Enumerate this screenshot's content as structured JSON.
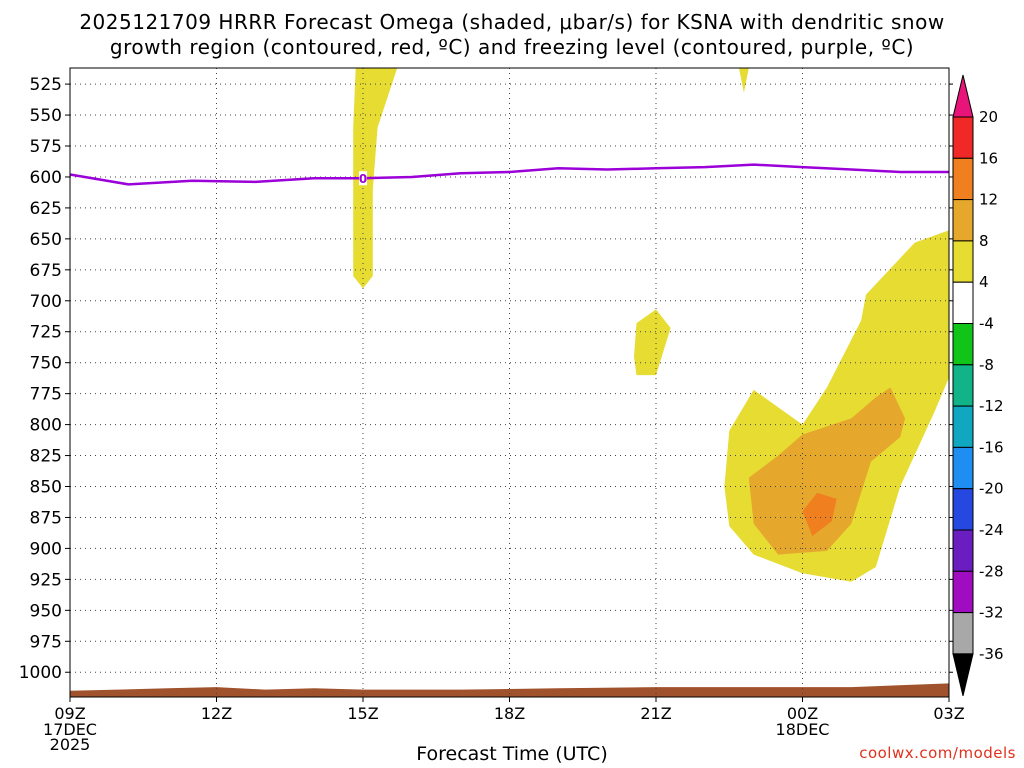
{
  "chart_data": {
    "type": "contour-crosssection",
    "title_line1": "2025121709 HRRR Forecast Omega (shaded, μbar/s) for KSNA with dendritic snow",
    "title_line2": "growth region (contoured, red, ºC) and freezing level (contoured, purple, ºC)",
    "xlabel": "Forecast Time (UTC)",
    "credit": "coolwx.com/models",
    "x_ticks": [
      {
        "hour": 0,
        "label": "09Z",
        "sub1": "17DEC",
        "sub2": "2025"
      },
      {
        "hour": 3,
        "label": "12Z"
      },
      {
        "hour": 6,
        "label": "15Z"
      },
      {
        "hour": 9,
        "label": "18Z"
      },
      {
        "hour": 12,
        "label": "21Z"
      },
      {
        "hour": 15,
        "label": "00Z",
        "sub1": "18DEC"
      },
      {
        "hour": 18,
        "label": "03Z"
      }
    ],
    "x_range_hours": [
      0,
      18
    ],
    "y_levels_hpa": [
      525,
      550,
      575,
      600,
      625,
      650,
      675,
      700,
      725,
      750,
      775,
      800,
      825,
      850,
      875,
      900,
      925,
      950,
      975,
      1000
    ],
    "y_range_hpa": [
      512,
      1020
    ],
    "colorbar": {
      "labels": [
        "20",
        "16",
        "12",
        "8",
        "4",
        "-4",
        "-8",
        "-12",
        "-16",
        "-20",
        "-24",
        "-28",
        "-32",
        "-36"
      ],
      "bins": [
        {
          "from": 20,
          "to": 16,
          "color": "#f02828"
        },
        {
          "from": 16,
          "to": 12,
          "color": "#ef7f1f"
        },
        {
          "from": 12,
          "to": 8,
          "color": "#e6a82c"
        },
        {
          "from": 8,
          "to": 4,
          "color": "#e6dc32"
        },
        {
          "from": 4,
          "to": -4,
          "color": "#ffffff"
        },
        {
          "from": -4,
          "to": -8,
          "color": "#10c418"
        },
        {
          "from": -8,
          "to": -12,
          "color": "#10b488"
        },
        {
          "from": -12,
          "to": -16,
          "color": "#10a8c0"
        },
        {
          "from": -16,
          "to": -20,
          "color": "#1e8ef0"
        },
        {
          "from": -20,
          "to": -24,
          "color": "#2448e0"
        },
        {
          "from": -24,
          "to": -28,
          "color": "#6a1ec0"
        },
        {
          "from": -28,
          "to": -32,
          "color": "#a00cc0"
        },
        {
          "from": -32,
          "to": -36,
          "color": "#a8a8a8"
        }
      ],
      "top_arrow_color": "#e8147a",
      "bottom_arrow_color": "#000000"
    },
    "freezing_level": {
      "color": "#9b00d9",
      "label": "0",
      "label_hour": 6.0,
      "points_hour_hpa": [
        [
          0,
          598
        ],
        [
          1.2,
          606
        ],
        [
          2.5,
          603
        ],
        [
          3.8,
          604
        ],
        [
          5,
          601
        ],
        [
          6,
          601
        ],
        [
          7,
          600
        ],
        [
          8,
          597
        ],
        [
          9,
          596
        ],
        [
          10,
          593
        ],
        [
          11,
          594
        ],
        [
          12,
          593
        ],
        [
          13,
          592
        ],
        [
          14,
          590
        ],
        [
          15,
          592
        ],
        [
          16,
          594
        ],
        [
          17,
          596
        ],
        [
          18,
          596
        ]
      ]
    },
    "omega_regions": [
      {
        "level": "4-8",
        "color": "#e6dc32",
        "name": "omega-region-15z-column",
        "points_hour_hpa": [
          [
            5.85,
            512
          ],
          [
            6.7,
            512
          ],
          [
            6.3,
            560
          ],
          [
            6.2,
            610
          ],
          [
            6.2,
            680
          ],
          [
            6.0,
            690
          ],
          [
            5.8,
            680
          ],
          [
            5.8,
            610
          ],
          [
            5.8,
            560
          ]
        ]
      },
      {
        "level": "4-8",
        "color": "#e6dc32",
        "name": "omega-region-22z-blip",
        "points_hour_hpa": [
          [
            13.7,
            512
          ],
          [
            13.9,
            512
          ],
          [
            13.8,
            532
          ]
        ]
      },
      {
        "level": "4-8",
        "color": "#e6dc32",
        "name": "omega-region-21z-patch",
        "points_hour_hpa": [
          [
            11.6,
            718
          ],
          [
            12.0,
            707
          ],
          [
            12.3,
            722
          ],
          [
            12.0,
            760
          ],
          [
            11.6,
            760
          ],
          [
            11.55,
            745
          ]
        ]
      },
      {
        "level": "4-8",
        "color": "#e6dc32",
        "name": "omega-region-main",
        "points_hour_hpa": [
          [
            18,
            643
          ],
          [
            17.3,
            653
          ],
          [
            16.3,
            695
          ],
          [
            16.2,
            716
          ],
          [
            15.5,
            770
          ],
          [
            15.0,
            800
          ],
          [
            14.0,
            772
          ],
          [
            13.5,
            805
          ],
          [
            13.4,
            850
          ],
          [
            13.5,
            882
          ],
          [
            14.0,
            905
          ],
          [
            15.0,
            920
          ],
          [
            16.0,
            927
          ],
          [
            16.5,
            915
          ],
          [
            17.0,
            850
          ],
          [
            17.7,
            790
          ],
          [
            18,
            762
          ]
        ]
      },
      {
        "level": "8-12",
        "color": "#e6a82c",
        "name": "omega-region-main-core",
        "points_hour_hpa": [
          [
            16.8,
            770
          ],
          [
            17.1,
            795
          ],
          [
            17.0,
            810
          ],
          [
            16.4,
            830
          ],
          [
            16.0,
            880
          ],
          [
            15.5,
            902
          ],
          [
            14.5,
            905
          ],
          [
            14.0,
            880
          ],
          [
            13.9,
            843
          ],
          [
            14.5,
            825
          ],
          [
            15.0,
            808
          ],
          [
            16.0,
            795
          ],
          [
            16.5,
            778
          ]
        ]
      },
      {
        "level": "12-16",
        "color": "#ef7f1f",
        "name": "omega-region-max",
        "points_hour_hpa": [
          [
            15.0,
            870
          ],
          [
            15.3,
            855
          ],
          [
            15.7,
            860
          ],
          [
            15.6,
            878
          ],
          [
            15.2,
            890
          ]
        ]
      }
    ],
    "terrain": {
      "color": "#a0522d",
      "name": "terrain",
      "points_hour_hpa": [
        [
          0,
          1015
        ],
        [
          2,
          1013
        ],
        [
          3,
          1012
        ],
        [
          4,
          1014
        ],
        [
          5,
          1013
        ],
        [
          6,
          1014
        ],
        [
          8,
          1014
        ],
        [
          10,
          1013
        ],
        [
          12,
          1012
        ],
        [
          14,
          1012
        ],
        [
          16,
          1012
        ],
        [
          18,
          1009
        ]
      ]
    }
  }
}
